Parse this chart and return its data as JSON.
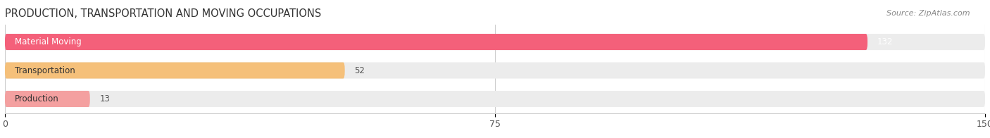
{
  "title": "PRODUCTION, TRANSPORTATION AND MOVING OCCUPATIONS",
  "source": "Source: ZipAtlas.com",
  "categories": [
    "Material Moving",
    "Transportation",
    "Production"
  ],
  "values": [
    132,
    52,
    13
  ],
  "bar_colors": [
    "#f4607a",
    "#f5c07a",
    "#f4a0a0"
  ],
  "bar_bg_color": "#f0f0f0",
  "xlim": [
    0,
    150
  ],
  "xticks": [
    0,
    75,
    150
  ],
  "label_fontsize": 9,
  "title_fontsize": 11,
  "value_label_color_inside": "white",
  "value_label_color_outside": "#555555",
  "background_color": "#ffffff"
}
